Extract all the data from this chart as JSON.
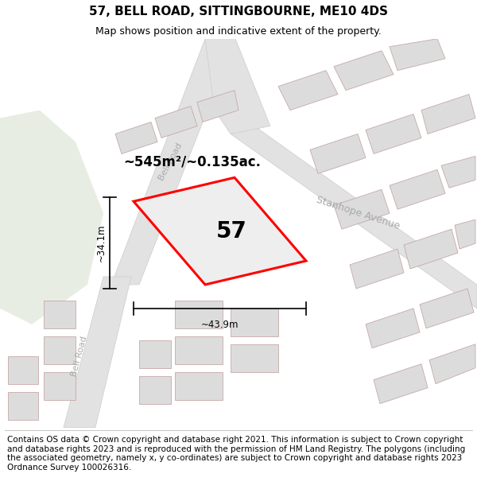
{
  "title": "57, BELL ROAD, SITTINGBOURNE, ME10 4DS",
  "subtitle": "Map shows position and indicative extent of the property.",
  "footer": "Contains OS data © Crown copyright and database right 2021. This information is subject to Crown copyright and database rights 2023 and is reproduced with the permission of HM Land Registry. The polygons (including the associated geometry, namely x, y co-ordinates) are subject to Crown copyright and database rights 2023 Ordnance Survey 100026316.",
  "map_bg": "#f7f7f5",
  "green_area_color": "#e8ede3",
  "road_fill": "#e2e2e2",
  "block_fill": "#dcdcdc",
  "block_edge": "#c8a8a8",
  "plot_outline_color": "#ff0000",
  "plot_fill_color": "#eeeeee",
  "plot_label": "57",
  "area_label": "~545m²/~0.135ac.",
  "dim_width_label": "~43.9m",
  "dim_height_label": "~34.1m",
  "road_label_color": "#aaaaaa",
  "title_fontsize": 11,
  "subtitle_fontsize": 9,
  "footer_fontsize": 7.5
}
